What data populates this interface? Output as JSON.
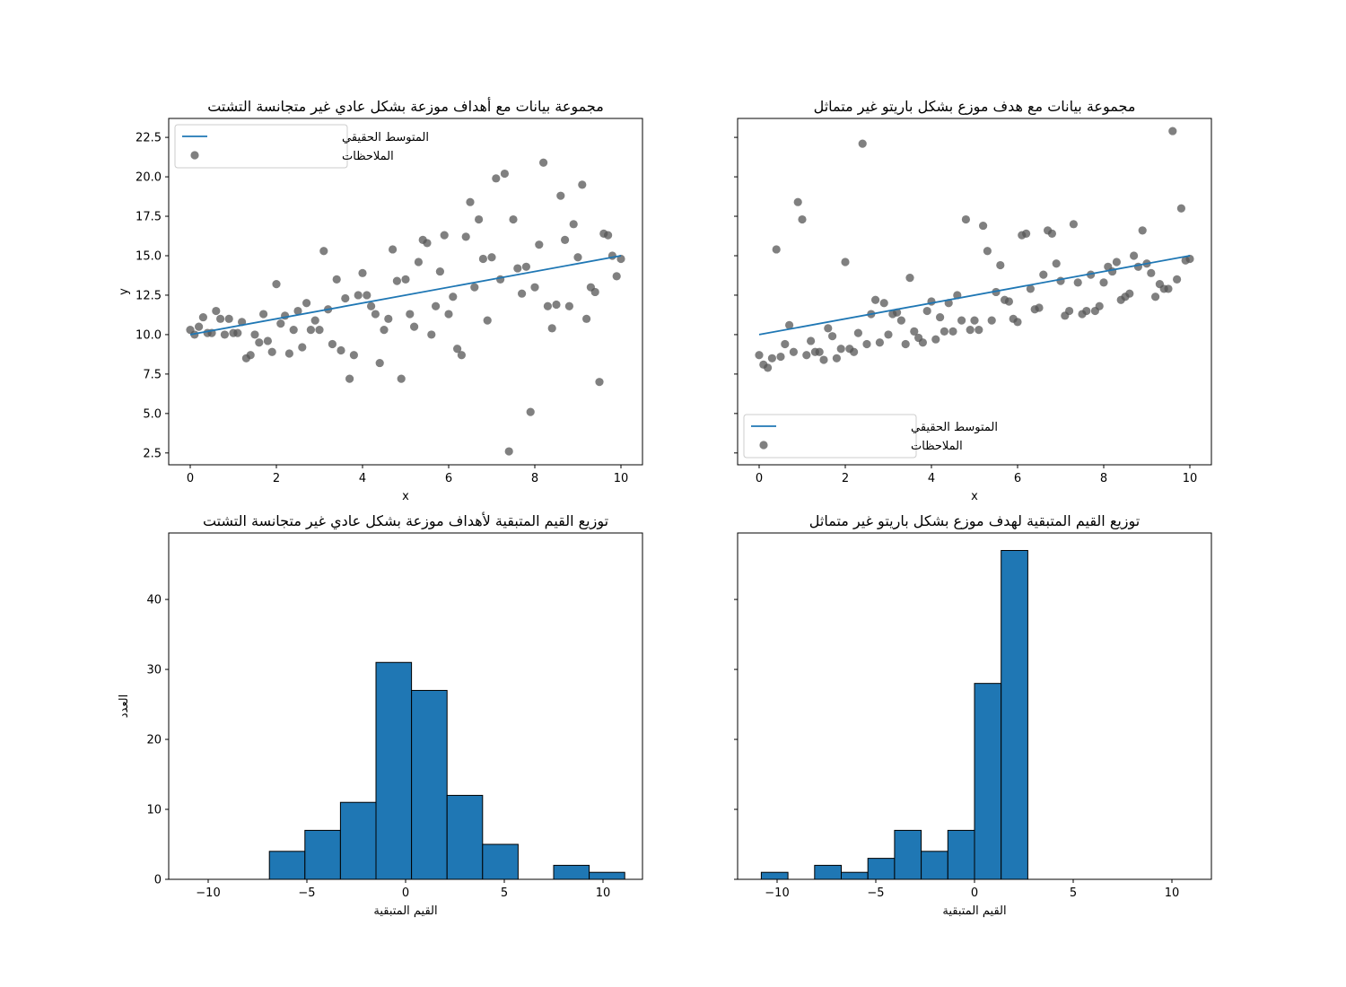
{
  "chart_data": [
    {
      "type": "scatter",
      "title": "مجموعة بيانات مع أهداف موزعة بشكل عادي غير متجانسة التشتت",
      "xlabel": "x",
      "ylabel": "y",
      "xlim": [
        -0.5,
        10.5
      ],
      "ylim": [
        1.75,
        23.7
      ],
      "xticks": [
        0,
        2,
        4,
        6,
        8,
        10
      ],
      "xtick_labels": [
        "0",
        "2",
        "4",
        "6",
        "8",
        "10"
      ],
      "yticks": [
        2.5,
        5.0,
        7.5,
        10.0,
        12.5,
        15.0,
        17.5,
        20.0,
        22.5
      ],
      "ytick_labels": [
        "2.5",
        "5.0",
        "7.5",
        "10.0",
        "12.5",
        "15.0",
        "17.5",
        "20.0",
        "22.5"
      ],
      "legend_position": "upper-left",
      "line": {
        "name": "المتوسط الحقيقي",
        "x": [
          0,
          10
        ],
        "y": [
          10,
          15
        ],
        "color": "#1f77b4"
      },
      "scatter": {
        "name": "الملاحظات",
        "color": "#555555",
        "x": [
          0.0,
          0.1,
          0.2,
          0.3,
          0.4,
          0.5,
          0.6,
          0.7,
          0.8,
          0.9,
          1.0,
          1.1,
          1.2,
          1.3,
          1.4,
          1.5,
          1.6,
          1.7,
          1.8,
          1.9,
          2.0,
          2.1,
          2.2,
          2.3,
          2.4,
          2.5,
          2.6,
          2.7,
          2.8,
          2.9,
          3.0,
          3.1,
          3.2,
          3.3,
          3.4,
          3.5,
          3.6,
          3.7,
          3.8,
          3.9,
          4.0,
          4.1,
          4.2,
          4.3,
          4.4,
          4.5,
          4.6,
          4.7,
          4.8,
          4.9,
          5.0,
          5.1,
          5.2,
          5.3,
          5.4,
          5.5,
          5.6,
          5.7,
          5.8,
          5.9,
          6.0,
          6.1,
          6.2,
          6.3,
          6.4,
          6.5,
          6.6,
          6.7,
          6.8,
          6.9,
          7.0,
          7.1,
          7.2,
          7.3,
          7.4,
          7.5,
          7.6,
          7.7,
          7.8,
          7.9,
          8.0,
          8.1,
          8.2,
          8.3,
          8.4,
          8.5,
          8.6,
          8.7,
          8.8,
          8.9,
          9.0,
          9.1,
          9.2,
          9.3,
          9.4,
          9.5,
          9.6,
          9.7,
          9.8,
          9.9,
          10.0
        ],
        "y": [
          10.3,
          10.0,
          10.5,
          11.1,
          10.1,
          10.1,
          11.5,
          11.0,
          10.0,
          11.0,
          10.1,
          10.1,
          10.8,
          8.5,
          8.7,
          10.0,
          9.5,
          11.3,
          9.6,
          8.9,
          13.2,
          10.7,
          11.2,
          8.8,
          10.3,
          11.5,
          9.2,
          12.0,
          10.3,
          10.9,
          10.3,
          15.3,
          11.6,
          9.4,
          13.5,
          9.0,
          12.3,
          7.2,
          8.7,
          12.5,
          13.9,
          12.5,
          11.8,
          11.3,
          8.2,
          10.3,
          11.0,
          15.4,
          13.4,
          7.2,
          13.5,
          11.3,
          10.5,
          14.6,
          16.0,
          15.8,
          10.0,
          11.8,
          14.0,
          16.3,
          11.3,
          12.4,
          9.1,
          8.7,
          16.2,
          18.4,
          13.0,
          17.3,
          14.8,
          10.9,
          14.9,
          19.9,
          13.5,
          20.2,
          2.6,
          17.3,
          14.2,
          12.6,
          14.3,
          5.1,
          13.0,
          15.7,
          20.9,
          11.8,
          10.4,
          11.9,
          18.8,
          16.0,
          11.8,
          17.0,
          14.9,
          19.5,
          11.0,
          13.0,
          12.7,
          7.0,
          16.4,
          16.3,
          15.0,
          13.7,
          14.8
        ]
      }
    },
    {
      "type": "scatter",
      "title": "مجموعة بيانات مع هدف موزع بشكل باريتو غير متماثل",
      "xlabel": "x",
      "ylabel": "",
      "xlim": [
        -0.5,
        10.5
      ],
      "ylim": [
        1.75,
        23.7
      ],
      "xticks": [
        0,
        2,
        4,
        6,
        8,
        10
      ],
      "xtick_labels": [
        "0",
        "2",
        "4",
        "6",
        "8",
        "10"
      ],
      "yticks": [
        2.5,
        5.0,
        7.5,
        10.0,
        12.5,
        15.0,
        17.5,
        20.0,
        22.5
      ],
      "ytick_labels": [],
      "legend_position": "lower-left",
      "line": {
        "name": "المتوسط الحقيقي",
        "x": [
          0,
          10
        ],
        "y": [
          10,
          15
        ],
        "color": "#1f77b4"
      },
      "scatter": {
        "name": "الملاحظات",
        "color": "#555555",
        "x": [
          0.0,
          0.1,
          0.2,
          0.3,
          0.4,
          0.5,
          0.6,
          0.7,
          0.8,
          0.9,
          1.0,
          1.1,
          1.2,
          1.3,
          1.4,
          1.5,
          1.6,
          1.7,
          1.8,
          1.9,
          2.0,
          2.1,
          2.2,
          2.3,
          2.4,
          2.5,
          2.6,
          2.7,
          2.8,
          2.9,
          3.0,
          3.1,
          3.2,
          3.3,
          3.4,
          3.5,
          3.6,
          3.7,
          3.8,
          3.9,
          4.0,
          4.1,
          4.2,
          4.3,
          4.4,
          4.5,
          4.6,
          4.7,
          4.8,
          4.9,
          5.0,
          5.1,
          5.2,
          5.3,
          5.4,
          5.5,
          5.6,
          5.7,
          5.8,
          5.9,
          6.0,
          6.1,
          6.2,
          6.3,
          6.4,
          6.5,
          6.6,
          6.7,
          6.8,
          6.9,
          7.0,
          7.1,
          7.2,
          7.3,
          7.4,
          7.5,
          7.6,
          7.7,
          7.8,
          7.9,
          8.0,
          8.1,
          8.2,
          8.3,
          8.4,
          8.5,
          8.6,
          8.7,
          8.8,
          8.9,
          9.0,
          9.1,
          9.2,
          9.3,
          9.4,
          9.5,
          9.6,
          9.7,
          9.8,
          9.9,
          10.0
        ],
        "y": [
          8.7,
          8.1,
          7.9,
          8.5,
          15.4,
          8.6,
          9.4,
          10.6,
          8.9,
          18.4,
          17.3,
          8.7,
          9.6,
          8.9,
          8.9,
          8.4,
          10.4,
          9.9,
          8.5,
          9.1,
          14.6,
          9.1,
          8.9,
          10.1,
          22.1,
          9.4,
          11.3,
          12.2,
          9.5,
          12.0,
          10.0,
          11.3,
          11.4,
          10.9,
          9.4,
          13.6,
          10.2,
          9.8,
          9.5,
          11.5,
          12.1,
          9.7,
          11.1,
          10.2,
          12.0,
          10.2,
          12.5,
          10.9,
          17.3,
          10.3,
          10.9,
          10.3,
          16.9,
          15.3,
          10.9,
          12.7,
          14.4,
          12.2,
          12.1,
          11.0,
          10.8,
          16.3,
          16.4,
          12.9,
          11.6,
          11.7,
          13.8,
          16.6,
          16.4,
          14.5,
          13.4,
          11.2,
          11.5,
          17.0,
          13.3,
          11.3,
          11.5,
          13.8,
          11.5,
          11.8,
          13.3,
          14.3,
          14.0,
          14.6,
          12.2,
          12.4,
          12.6,
          15.0,
          14.3,
          16.6,
          14.5,
          13.9,
          12.4,
          13.2,
          12.9,
          12.9,
          22.9,
          13.5,
          18.0,
          14.7,
          14.8
        ]
      }
    },
    {
      "type": "bar",
      "title": "توزيع القيم المتبقية لأهداف موزعة بشكل عادي غير متجانسة التشتت",
      "xlabel": "القيم المتبقية",
      "ylabel": "العدد",
      "xlim": [
        -12,
        12
      ],
      "ylim": [
        0,
        49.5
      ],
      "xticks": [
        -10,
        -5,
        0,
        5,
        10
      ],
      "xtick_labels": [
        "−10",
        "−5",
        "0",
        "5",
        "10"
      ],
      "yticks": [
        0,
        10,
        20,
        30,
        40
      ],
      "ytick_labels": [
        "0",
        "10",
        "20",
        "30",
        "40"
      ],
      "color": "#1f77b4",
      "bin_edges": [
        -6.9,
        -5.1,
        -3.3,
        -1.5,
        0.3,
        2.1,
        3.9,
        5.7,
        7.5,
        9.3,
        11.1
      ],
      "values": [
        4,
        7,
        11,
        31,
        27,
        12,
        5,
        0,
        2,
        1
      ]
    },
    {
      "type": "bar",
      "title": "توزيع القيم المتبقية لهدف موزع بشكل باريتو غير متماثل",
      "xlabel": "القيم المتبقية",
      "ylabel": "",
      "xlim": [
        -12,
        12
      ],
      "ylim": [
        0,
        49.5
      ],
      "xticks": [
        -10,
        -5,
        0,
        5,
        10
      ],
      "xtick_labels": [
        "−10",
        "−5",
        "0",
        "5",
        "10"
      ],
      "yticks": [
        0,
        10,
        20,
        30,
        40
      ],
      "ytick_labels": [],
      "color": "#1f77b4",
      "bin_edges": [
        -10.8,
        -9.45,
        -8.1,
        -6.75,
        -5.4,
        -4.05,
        -2.7,
        -1.35,
        0.0,
        1.35,
        2.7
      ],
      "values": [
        1,
        0,
        2,
        1,
        3,
        7,
        4,
        7,
        28,
        47
      ]
    }
  ]
}
